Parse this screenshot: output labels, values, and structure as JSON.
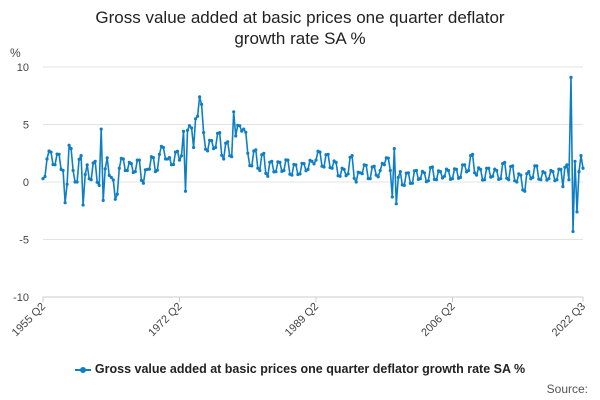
{
  "chart_data": {
    "type": "line",
    "title_lines": [
      "Gross value added at basic prices one quarter deflator",
      "growth rate SA %"
    ],
    "ylabel": "%",
    "ylim": [
      -10,
      10
    ],
    "yticks": [
      10,
      5,
      0,
      -5,
      -10
    ],
    "xtick_labels": [
      "1955 Q2",
      "1972 Q2",
      "1989 Q2",
      "2006 Q2",
      "2022 Q3"
    ],
    "x_range": [
      "1955 Q2",
      "2022 Q3"
    ],
    "grid": true,
    "legend_position": "bottom",
    "colors": {
      "series": "#0f7fc4",
      "grid": "#e3e3e3",
      "axis": "#cccccc"
    },
    "series": [
      {
        "name": "Gross value added at basic prices one quarter deflator growth rate SA %",
        "anchors": [
          [
            "1955 Q2",
            0.3
          ],
          [
            "1955 Q4",
            2.0
          ],
          [
            "1956 Q2",
            2.6
          ],
          [
            "1956 Q4",
            1.5
          ],
          [
            "1957 Q2",
            2.4
          ],
          [
            "1957 Q4",
            1.0
          ],
          [
            "1958 Q1",
            -1.8
          ],
          [
            "1958 Q3",
            3.2
          ],
          [
            "1959 Q1",
            1.0
          ],
          [
            "1959 Q3",
            0.0
          ],
          [
            "1960 Q1",
            2.3
          ],
          [
            "1960 Q2",
            -2.0
          ],
          [
            "1960 Q4",
            1.5
          ],
          [
            "1961 Q2",
            0.2
          ],
          [
            "1961 Q4",
            1.8
          ],
          [
            "1962 Q2",
            -0.3
          ],
          [
            "1962 Q3",
            4.6
          ],
          [
            "1962 Q4",
            -1.6
          ],
          [
            "1963 Q2",
            2.1
          ],
          [
            "1963 Q4",
            0.4
          ],
          [
            "1964 Q2",
            -1.5
          ],
          [
            "1964 Q4",
            1.2
          ],
          [
            "1965 Q2",
            2.0
          ],
          [
            "1965 Q4",
            1.0
          ],
          [
            "1966 Q2",
            1.6
          ],
          [
            "1966 Q4",
            0.9
          ],
          [
            "1967 Q2",
            1.9
          ],
          [
            "1967 Q4",
            -0.1
          ],
          [
            "1968 Q2",
            1.1
          ],
          [
            "1968 Q4",
            2.2
          ],
          [
            "1969 Q2",
            0.9
          ],
          [
            "1969 Q4",
            2.4
          ],
          [
            "1970 Q2",
            3.0
          ],
          [
            "1970 Q4",
            2.0
          ],
          [
            "1971 Q2",
            1.5
          ],
          [
            "1971 Q4",
            2.6
          ],
          [
            "1972 Q2",
            1.9
          ],
          [
            "1972 Q4",
            4.4
          ],
          [
            "1973 Q1",
            -0.8
          ],
          [
            "1973 Q2",
            4.5
          ],
          [
            "1973 Q4",
            4.7
          ],
          [
            "1974 Q1",
            3.0
          ],
          [
            "1974 Q2",
            5.5
          ],
          [
            "1974 Q4",
            7.4
          ],
          [
            "1975 Q2",
            4.3
          ],
          [
            "1975 Q4",
            2.7
          ],
          [
            "1976 Q2",
            3.6
          ],
          [
            "1976 Q4",
            3.0
          ],
          [
            "1977 Q2",
            4.3
          ],
          [
            "1977 Q4",
            2.0
          ],
          [
            "1978 Q2",
            3.5
          ],
          [
            "1978 Q4",
            2.2
          ],
          [
            "1979 Q1",
            6.1
          ],
          [
            "1979 Q2",
            4.0
          ],
          [
            "1979 Q4",
            4.9
          ],
          [
            "1980 Q2",
            4.6
          ],
          [
            "1980 Q4",
            2.5
          ],
          [
            "1981 Q2",
            1.4
          ],
          [
            "1981 Q4",
            2.8
          ],
          [
            "1982 Q2",
            1.0
          ],
          [
            "1982 Q4",
            2.5
          ],
          [
            "1983 Q2",
            0.5
          ],
          [
            "1983 Q4",
            1.8
          ],
          [
            "1984 Q2",
            0.9
          ],
          [
            "1984 Q4",
            1.7
          ],
          [
            "1985 Q2",
            1.0
          ],
          [
            "1985 Q4",
            1.9
          ],
          [
            "1986 Q2",
            0.6
          ],
          [
            "1986 Q4",
            1.5
          ],
          [
            "1987 Q2",
            0.7
          ],
          [
            "1987 Q4",
            1.6
          ],
          [
            "1988 Q2",
            1.1
          ],
          [
            "1988 Q4",
            1.8
          ],
          [
            "1989 Q2",
            1.9
          ],
          [
            "1989 Q4",
            2.6
          ],
          [
            "1990 Q2",
            1.3
          ],
          [
            "1990 Q4",
            2.4
          ],
          [
            "1991 Q2",
            1.2
          ],
          [
            "1991 Q4",
            1.7
          ],
          [
            "1992 Q2",
            0.5
          ],
          [
            "1992 Q4",
            1.1
          ],
          [
            "1993 Q2",
            0.7
          ],
          [
            "1993 Q4",
            2.3
          ],
          [
            "1994 Q2",
            0.0
          ],
          [
            "1994 Q4",
            0.8
          ],
          [
            "1995 Q2",
            1.5
          ],
          [
            "1995 Q4",
            0.3
          ],
          [
            "1996 Q2",
            1.3
          ],
          [
            "1996 Q4",
            0.6
          ],
          [
            "1997 Q2",
            1.0
          ],
          [
            "1997 Q4",
            1.5
          ],
          [
            "1998 Q1",
            2.1
          ],
          [
            "1998 Q3",
            1.0
          ],
          [
            "1998 Q4",
            -1.3
          ],
          [
            "1999 Q1",
            2.9
          ],
          [
            "1999 Q2",
            -1.9
          ],
          [
            "1999 Q4",
            0.9
          ],
          [
            "2000 Q2",
            -0.3
          ],
          [
            "2000 Q4",
            0.8
          ],
          [
            "2001 Q2",
            -0.1
          ],
          [
            "2001 Q4",
            1.0
          ],
          [
            "2002 Q2",
            0.3
          ],
          [
            "2002 Q4",
            0.8
          ],
          [
            "2003 Q2",
            0.1
          ],
          [
            "2003 Q4",
            1.3
          ],
          [
            "2004 Q2",
            0.2
          ],
          [
            "2004 Q4",
            0.9
          ],
          [
            "2005 Q2",
            0.5
          ],
          [
            "2005 Q4",
            1.0
          ],
          [
            "2006 Q2",
            0.3
          ],
          [
            "2006 Q4",
            1.1
          ],
          [
            "2007 Q2",
            0.4
          ],
          [
            "2007 Q4",
            1.5
          ],
          [
            "2008 Q2",
            1.0
          ],
          [
            "2008 Q4",
            2.4
          ],
          [
            "2009 Q2",
            0.6
          ],
          [
            "2009 Q4",
            1.1
          ],
          [
            "2010 Q2",
            0.2
          ],
          [
            "2010 Q4",
            1.2
          ],
          [
            "2011 Q2",
            0.5
          ],
          [
            "2011 Q4",
            1.0
          ],
          [
            "2012 Q2",
            0.3
          ],
          [
            "2012 Q4",
            1.7
          ],
          [
            "2013 Q2",
            0.2
          ],
          [
            "2013 Q4",
            1.4
          ],
          [
            "2014 Q2",
            0.0
          ],
          [
            "2014 Q4",
            0.6
          ],
          [
            "2015 Q2",
            -0.8
          ],
          [
            "2015 Q4",
            0.9
          ],
          [
            "2016 Q2",
            0.4
          ],
          [
            "2016 Q4",
            1.4
          ],
          [
            "2017 Q2",
            0.2
          ],
          [
            "2017 Q4",
            0.8
          ],
          [
            "2018 Q2",
            0.3
          ],
          [
            "2018 Q4",
            0.9
          ],
          [
            "2019 Q2",
            0.2
          ],
          [
            "2019 Q4",
            1.1
          ],
          [
            "2020 Q1",
            -0.4
          ],
          [
            "2020 Q3",
            1.5
          ],
          [
            "2020 Q4",
            0.2
          ],
          [
            "2021 Q1",
            9.1
          ],
          [
            "2021 Q2",
            -4.3
          ],
          [
            "2021 Q3",
            1.8
          ],
          [
            "2021 Q4",
            -2.6
          ],
          [
            "2022 Q1",
            0.9
          ],
          [
            "2022 Q2",
            2.3
          ],
          [
            "2022 Q3",
            1.2
          ]
        ]
      }
    ]
  },
  "source_label": "Source:"
}
